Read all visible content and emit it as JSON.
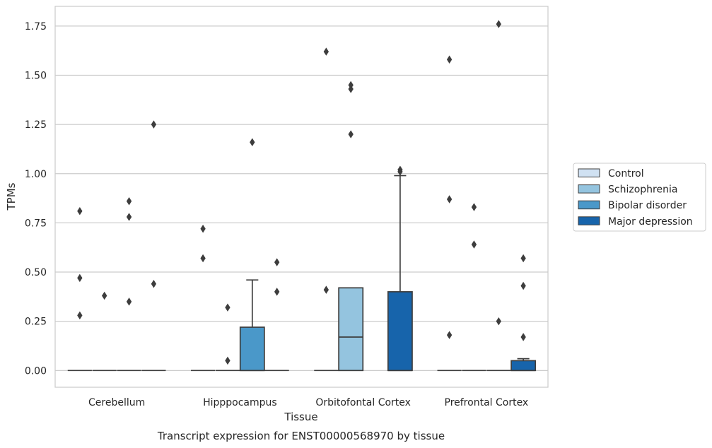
{
  "chart_data": {
    "type": "box",
    "xlabel": "Tissue",
    "ylabel": "TPMs",
    "caption": "Transcript expression for ENST00000568970 by tissue",
    "ylim": [
      -0.085,
      1.85
    ],
    "yticks": [
      0.0,
      0.25,
      0.5,
      0.75,
      1.0,
      1.25,
      1.5,
      1.75
    ],
    "ytick_labels": [
      "0.00",
      "0.25",
      "0.50",
      "0.75",
      "1.00",
      "1.25",
      "1.50",
      "1.75"
    ],
    "grid": "horizontal",
    "legend_position": "right",
    "categories": [
      "Cerebellum",
      "Hipppocampus",
      "Orbitofontal Cortex",
      "Prefrontal Cortex"
    ],
    "series": [
      {
        "name": "Control",
        "color": "#d0e1f2",
        "boxes": [
          {
            "q1": 0,
            "median": 0,
            "q3": 0,
            "whisker_low": 0,
            "whisker_high": 0,
            "outliers": [
              0.81,
              0.47,
              0.28
            ]
          },
          {
            "q1": 0,
            "median": 0,
            "q3": 0,
            "whisker_low": 0,
            "whisker_high": 0,
            "outliers": [
              0.72,
              0.57
            ]
          },
          {
            "q1": 0,
            "median": 0,
            "q3": 0,
            "whisker_low": 0,
            "whisker_high": 0,
            "outliers": [
              1.62,
              0.41
            ]
          },
          {
            "q1": 0,
            "median": 0,
            "q3": 0,
            "whisker_low": 0,
            "whisker_high": 0,
            "outliers": [
              1.58,
              0.87,
              0.18
            ]
          }
        ]
      },
      {
        "name": "Schizophrenia",
        "color": "#94c4df",
        "boxes": [
          {
            "q1": 0,
            "median": 0,
            "q3": 0,
            "whisker_low": 0,
            "whisker_high": 0,
            "outliers": [
              0.38
            ]
          },
          {
            "q1": 0,
            "median": 0,
            "q3": 0,
            "whisker_low": 0,
            "whisker_high": 0,
            "outliers": [
              0.32,
              0.05
            ]
          },
          {
            "q1": 0,
            "median": 0.17,
            "q3": 0.42,
            "whisker_low": 0,
            "whisker_high": 0.42,
            "outliers": [
              1.45,
              1.43,
              1.2
            ]
          },
          {
            "q1": 0,
            "median": 0,
            "q3": 0,
            "whisker_low": 0,
            "whisker_high": 0,
            "outliers": [
              0.83,
              0.64
            ]
          }
        ]
      },
      {
        "name": "Bipolar disorder",
        "color": "#4a98c9",
        "boxes": [
          {
            "q1": 0,
            "median": 0,
            "q3": 0,
            "whisker_low": 0,
            "whisker_high": 0,
            "outliers": [
              0.86,
              0.78,
              0.35
            ]
          },
          {
            "q1": 0,
            "median": 0,
            "q3": 0.22,
            "whisker_low": 0,
            "whisker_high": 0.46,
            "outliers": [
              1.16
            ]
          },
          null,
          {
            "q1": 0,
            "median": 0,
            "q3": 0,
            "whisker_low": 0,
            "whisker_high": 0,
            "outliers": [
              1.76,
              0.25
            ]
          }
        ]
      },
      {
        "name": "Major depression",
        "color": "#1764ab",
        "boxes": [
          {
            "q1": 0,
            "median": 0,
            "q3": 0,
            "whisker_low": 0,
            "whisker_high": 0,
            "outliers": [
              1.25,
              0.44
            ]
          },
          {
            "q1": 0,
            "median": 0,
            "q3": 0,
            "whisker_low": 0,
            "whisker_high": 0,
            "outliers": [
              0.55,
              0.4
            ]
          },
          {
            "q1": 0,
            "median": 0,
            "q3": 0.4,
            "whisker_low": 0,
            "whisker_high": 0.99,
            "outliers": [
              1.02,
              1.01
            ]
          },
          {
            "q1": 0,
            "median": 0,
            "q3": 0.05,
            "whisker_low": 0,
            "whisker_high": 0.06,
            "outliers": [
              0.57,
              0.43,
              0.17
            ]
          }
        ]
      }
    ]
  }
}
